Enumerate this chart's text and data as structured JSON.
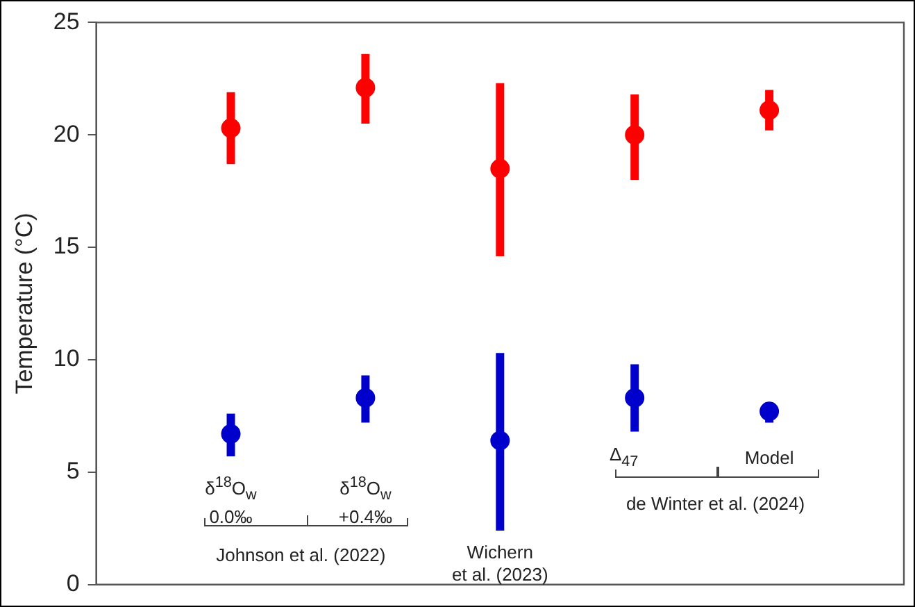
{
  "chart_data": {
    "type": "scatter",
    "ylabel": "Temperature (°C)",
    "categories": [
      null,
      null,
      null,
      null,
      null
    ],
    "series": [
      {
        "color": "#ff0000",
        "values": [
          20.3,
          22.1,
          18.5,
          20.0,
          21.1
        ],
        "errors": [
          [
            18.7,
            21.9
          ],
          [
            20.5,
            23.6
          ],
          [
            14.6,
            22.3
          ],
          [
            18.0,
            21.8
          ],
          [
            20.2,
            22.0
          ]
        ]
      },
      {
        "color": "#0000cc",
        "values": [
          6.7,
          8.3,
          6.4,
          8.3,
          7.7
        ],
        "errors": [
          [
            5.7,
            7.6
          ],
          [
            7.2,
            9.3
          ],
          [
            2.4,
            10.3
          ],
          [
            6.8,
            9.8
          ],
          [
            7.2,
            8.1
          ]
        ]
      }
    ],
    "ylim": [
      0,
      25
    ],
    "yticks": [
      0,
      5,
      10,
      15,
      20,
      25
    ],
    "grid": false,
    "legend": false,
    "marker": "circle",
    "tick_labels": "y",
    "annotations": [
      "δ$^{18}$O$_{w}$\n0.0‰",
      "δ$^{18}$O$_{w}$\n+0.4‰",
      "Johnson et al. (2022)",
      "Wichern\net al. (2023)",
      "Δ$_{47}$",
      "Model",
      "de Winter et al. (2024)"
    ]
  }
}
